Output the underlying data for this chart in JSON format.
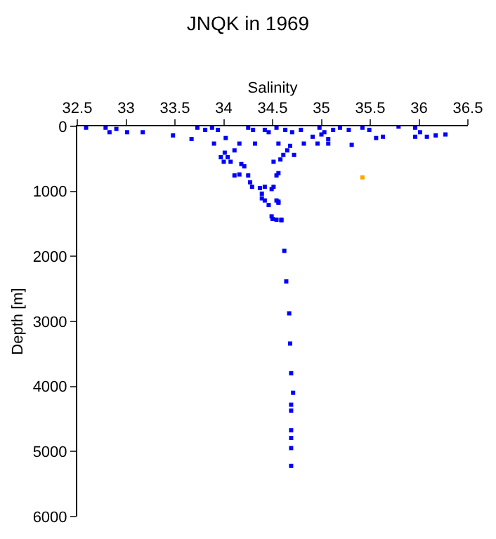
{
  "chart_data": {
    "type": "scatter",
    "title": "JNQK in 1969",
    "xlabel": "Salinity",
    "ylabel": "Depth [m]",
    "xlim": [
      32.5,
      36.5
    ],
    "xticks": [
      32.5,
      33,
      33.5,
      34,
      34.5,
      35,
      35.5,
      36,
      36.5
    ],
    "ylim": [
      6000,
      0
    ],
    "yticks": [
      0,
      1000,
      2000,
      3000,
      4000,
      5000,
      6000
    ],
    "marker": "square",
    "series": [
      {
        "color": "#0000ff",
        "x": [
          32.59,
          32.79,
          32.83,
          32.9,
          33.01,
          33.17,
          33.48,
          33.67,
          33.73,
          33.81,
          33.88,
          33.9,
          33.94,
          34.02,
          34.01,
          34.04,
          34.11,
          34.16,
          34.25,
          34.3,
          34.32,
          33.97,
          34.0,
          34.07,
          34.18,
          34.21,
          34.11,
          34.16,
          34.25,
          34.27,
          34.29,
          34.37,
          34.42,
          34.39,
          34.42,
          34.46,
          34.49,
          34.51,
          34.54,
          34.56,
          34.49,
          34.54,
          34.59,
          34.54,
          34.56,
          34.51,
          34.58,
          34.61,
          34.65,
          34.72,
          34.68,
          34.56,
          34.42,
          34.46,
          34.54,
          34.63,
          34.7,
          34.79,
          34.82,
          34.91,
          34.96,
          34.98,
          35.03,
          35.07,
          35.12,
          35.19,
          35.28,
          35.31,
          35.42,
          35.49,
          35.56,
          35.63,
          35.79,
          35.96,
          36.01,
          35.96,
          36.08,
          36.17,
          36.27,
          35.07,
          35.0,
          34.39,
          34.56,
          34.5,
          34.59,
          34.62,
          34.64,
          34.67,
          34.68,
          34.69,
          34.71,
          34.69,
          34.69,
          34.69,
          34.69,
          34.69,
          34.69
        ],
        "values": [
          20,
          20,
          90,
          40,
          90,
          90,
          140,
          195,
          20,
          55,
          20,
          265,
          55,
          180,
          405,
          475,
          370,
          265,
          20,
          55,
          265,
          475,
          545,
          545,
          580,
          615,
          755,
          740,
          755,
          860,
          930,
          950,
          930,
          1035,
          1140,
          1210,
          965,
          930,
          1140,
          1175,
          1385,
          1435,
          1435,
          755,
          720,
          545,
          510,
          440,
          370,
          440,
          300,
          265,
          55,
          90,
          20,
          55,
          90,
          55,
          265,
          160,
          265,
          20,
          90,
          195,
          55,
          20,
          55,
          285,
          20,
          55,
          180,
          160,
          5,
          20,
          90,
          160,
          160,
          140,
          125,
          265,
          125,
          1107,
          1158,
          1424,
          1445,
          1915,
          2385,
          2876,
          3340,
          3796,
          4097,
          4280,
          4371,
          4674,
          4792,
          4947,
          5221
        ]
      },
      {
        "color": "#ffa500",
        "x": [
          35.42
        ],
        "values": [
          785
        ]
      }
    ]
  }
}
